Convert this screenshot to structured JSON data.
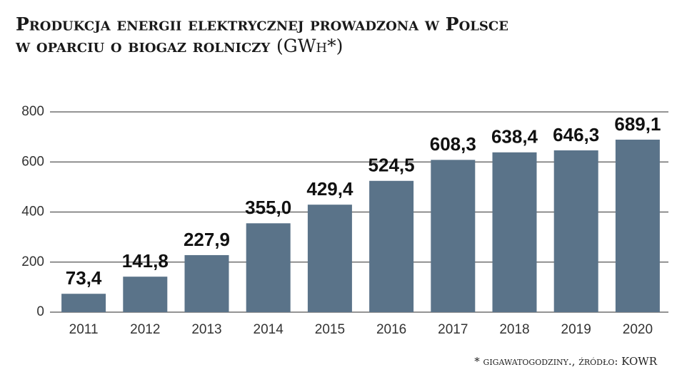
{
  "chart_data": {
    "type": "bar",
    "title_lines": [
      "Produkcja energii elektrycznej prowadzona w Polsce",
      "w oparciu o biogaz rolniczy"
    ],
    "unit": "(GWh*)",
    "footnote": "* gigawatogodziny., źródło: KOWR",
    "categories": [
      "2011",
      "2012",
      "2013",
      "2014",
      "2015",
      "2016",
      "2017",
      "2018",
      "2019",
      "2020"
    ],
    "values": [
      73.4,
      141.8,
      227.9,
      355.0,
      429.4,
      524.5,
      608.3,
      638.4,
      646.3,
      689.1
    ],
    "value_labels": [
      "73,4",
      "141,8",
      "227,9",
      "355,0",
      "429,4",
      "524,5",
      "608,3",
      "638,4",
      "646,3",
      "689,1"
    ],
    "color": "#5a7389",
    "ylim": [
      0,
      800
    ],
    "yticks": [
      0,
      200,
      400,
      600,
      800
    ],
    "grid": true
  }
}
